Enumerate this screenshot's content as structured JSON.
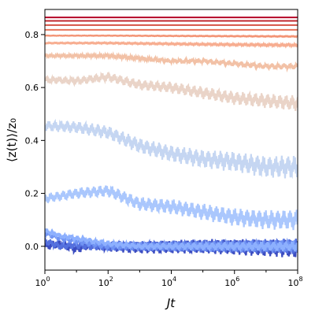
{
  "chart_data": {
    "type": "line",
    "xlabel": "Jt",
    "ylabel": "⟨z(t)⟩/z₀",
    "xscale": "log",
    "xlim": [
      1,
      100000000
    ],
    "ylim": [
      -0.09,
      0.895
    ],
    "grid": false,
    "x_ticks": [
      {
        "base": "10",
        "exp": "0",
        "value": 1
      },
      {
        "base": "10",
        "exp": "2",
        "value": 100
      },
      {
        "base": "10",
        "exp": "4",
        "value": 10000
      },
      {
        "base": "10",
        "exp": "6",
        "value": 1000000
      },
      {
        "base": "10",
        "exp": "8",
        "value": 100000000
      }
    ],
    "y_ticks": [
      {
        "label": "0.0",
        "value": 0.0
      },
      {
        "label": "0.2",
        "value": 0.2
      },
      {
        "label": "0.4",
        "value": 0.4
      },
      {
        "label": "0.6",
        "value": 0.6
      },
      {
        "label": "0.8",
        "value": 0.8
      }
    ],
    "colormap": "coolwarm",
    "series": [
      {
        "color": "#3b4cc0",
        "x": [
          1,
          3,
          10,
          30,
          100,
          1000,
          100000,
          100000000
        ],
        "y": [
          0.0,
          0.01,
          -0.01,
          0.01,
          0.0,
          -0.005,
          0.0,
          -0.01
        ],
        "osc": 0.035
      },
      {
        "color": "#5470de",
        "x": [
          1,
          3,
          10,
          30,
          100,
          1000,
          100000,
          100000000
        ],
        "y": [
          0.02,
          0.0,
          0.005,
          0.0,
          0.0,
          0.0,
          0.0,
          0.0
        ],
        "osc": 0.03
      },
      {
        "color": "#7093f3",
        "x": [
          1,
          3,
          10,
          30,
          100,
          1000,
          100000,
          100000000
        ],
        "y": [
          0.05,
          0.03,
          0.02,
          0.01,
          0.0,
          0.0,
          0.0,
          0.0
        ],
        "osc": 0.025
      },
      {
        "color": "#8db0fe",
        "x": [
          1,
          3,
          10,
          30,
          100,
          1000,
          100000,
          100000000
        ],
        "y": [
          0.06,
          0.04,
          0.03,
          0.02,
          0.01,
          0.0,
          0.0,
          0.0
        ],
        "osc": 0.02
      },
      {
        "color": "#aac7fd",
        "x": [
          1,
          10,
          100,
          1000,
          10000,
          100000,
          1000000,
          10000000,
          100000000
        ],
        "y": [
          0.18,
          0.2,
          0.21,
          0.16,
          0.15,
          0.13,
          0.11,
          0.1,
          0.1
        ],
        "osc": 0.04
      },
      {
        "color": "#c5d6f2",
        "x": [
          1,
          10,
          100,
          1000,
          10000,
          100000,
          1000000,
          10000000,
          100000000
        ],
        "y": [
          0.455,
          0.45,
          0.43,
          0.38,
          0.35,
          0.33,
          0.32,
          0.3,
          0.3
        ],
        "osc": 0.045
      },
      {
        "color": "#ead4c8",
        "x": [
          1,
          10,
          100,
          1000,
          10000,
          100000,
          1000000,
          10000000,
          100000000
        ],
        "y": [
          0.63,
          0.625,
          0.64,
          0.61,
          0.6,
          0.58,
          0.56,
          0.55,
          0.54
        ],
        "osc": 0.03
      },
      {
        "color": "#f2c1a6",
        "x": [
          1,
          10,
          100,
          1000,
          10000,
          100000,
          1000000,
          10000000,
          100000000
        ],
        "y": [
          0.72,
          0.72,
          0.72,
          0.71,
          0.7,
          0.7,
          0.69,
          0.68,
          0.68
        ],
        "osc": 0.012
      },
      {
        "color": "#f7ad90",
        "x": [
          1,
          100,
          10000,
          1000000,
          100000000
        ],
        "y": [
          0.768,
          0.768,
          0.765,
          0.762,
          0.76
        ],
        "osc": 0.005
      },
      {
        "color": "#f39475",
        "x": [
          1,
          100,
          10000,
          1000000,
          100000000
        ],
        "y": [
          0.796,
          0.796,
          0.795,
          0.794,
          0.793
        ],
        "osc": 0.002
      },
      {
        "color": "#e7745b",
        "x": [
          1,
          100000000
        ],
        "y": [
          0.818,
          0.818
        ],
        "osc": 0.0
      },
      {
        "color": "#d65244",
        "x": [
          1,
          100000000
        ],
        "y": [
          0.836,
          0.836
        ],
        "osc": 0.0
      },
      {
        "color": "#c0282f",
        "x": [
          1,
          100000000
        ],
        "y": [
          0.852,
          0.852
        ],
        "osc": 0.0
      },
      {
        "color": "#b40426",
        "x": [
          1,
          100000000
        ],
        "y": [
          0.865,
          0.865
        ],
        "osc": 0.0
      }
    ]
  }
}
